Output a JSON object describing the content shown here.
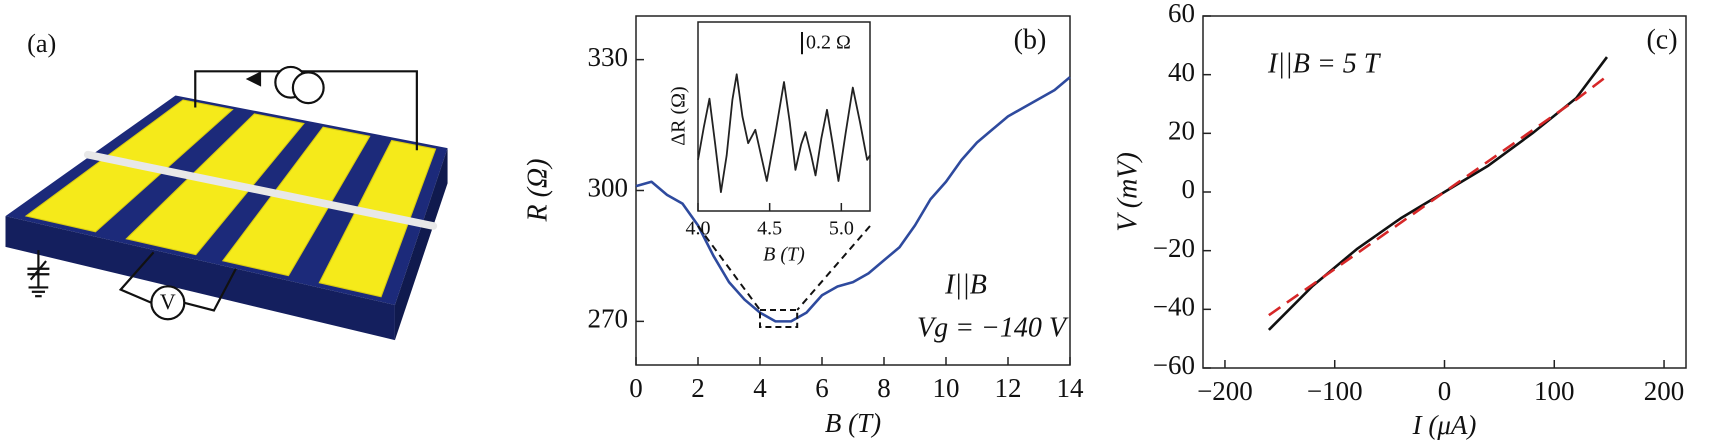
{
  "panel_a": {
    "label": "(a)",
    "voltmeter": "V"
  },
  "chart_data": [
    {
      "type": "line",
      "panel_label": "(b)",
      "xlabel": "B (T)",
      "ylabel": "R (Ω)",
      "annotations": [
        "I||B",
        "Vg = −140 V"
      ],
      "x": [
        0,
        0.5,
        1,
        1.5,
        2,
        2.5,
        3,
        3.5,
        4,
        4.5,
        5,
        5.5,
        6,
        6.5,
        7,
        7.5,
        8,
        8.5,
        9,
        9.5,
        10,
        10.5,
        11,
        11.5,
        12,
        12.5,
        13,
        13.5,
        14
      ],
      "series": [
        {
          "color": "#2e4a9e",
          "style": "solid",
          "values": [
            301,
            302,
            299,
            297,
            292,
            285,
            279,
            275,
            272,
            270,
            270,
            272,
            276,
            278,
            279,
            281,
            284,
            287,
            292,
            298,
            302,
            307,
            311,
            314,
            317,
            319,
            321,
            323,
            326
          ]
        }
      ],
      "xlim": [
        0,
        14
      ],
      "ylim": [
        260,
        340
      ],
      "xticks": [
        0,
        2,
        4,
        6,
        8,
        10,
        12,
        14
      ],
      "yticks": [
        270,
        300,
        330
      ],
      "inset": {
        "type": "line",
        "xlabel": "B (T)",
        "ylabel": "ΔR (Ω)",
        "x": [
          4.0,
          4.04,
          4.08,
          4.12,
          4.16,
          4.2,
          4.24,
          4.27,
          4.31,
          4.35,
          4.4,
          4.44,
          4.48,
          4.54,
          4.6,
          4.64,
          4.68,
          4.72,
          4.75,
          4.79,
          4.82,
          4.86,
          4.9,
          4.94,
          4.98,
          5.03,
          5.08,
          5.13,
          5.18,
          5.2
        ],
        "series": [
          {
            "color": "#222222",
            "style": "solid",
            "values": [
              -0.34,
              -0.05,
              0.21,
              -0.2,
              -0.63,
              -0.3,
              0.2,
              0.43,
              0.05,
              -0.19,
              -0.07,
              -0.3,
              -0.53,
              -0.1,
              0.36,
              0.0,
              -0.43,
              -0.2,
              -0.09,
              -0.3,
              -0.48,
              -0.15,
              0.11,
              -0.2,
              -0.53,
              -0.1,
              0.31,
              0.0,
              -0.34,
              -0.3
            ]
          }
        ],
        "xlim": [
          4.0,
          5.2
        ],
        "ylim": [
          -0.8,
          0.9
        ],
        "xticks": [
          {
            "value": 4,
            "label": "4.0"
          },
          4.5,
          {
            "value": 5,
            "label": "5.0"
          }
        ],
        "scale_bar": {
          "value": 0.2,
          "label": "0.2 Ω"
        }
      }
    },
    {
      "type": "line",
      "panel_label": "(c)",
      "xlabel": "I (μA)",
      "ylabel": "V (mV)",
      "annotations": [
        "I||B = 5 T"
      ],
      "x": [
        -160,
        -120,
        -80,
        -40,
        0,
        40,
        80,
        120,
        148
      ],
      "series": [
        {
          "color": "#111111",
          "style": "solid",
          "values": [
            -47,
            -32,
            -19.5,
            -9,
            0,
            9,
            20,
            32,
            46
          ]
        },
        {
          "color": "#d62728",
          "style": "dashed",
          "values": [
            -42,
            -31.5,
            -21,
            -10.5,
            0,
            10.5,
            21,
            31.5,
            39.5
          ]
        }
      ],
      "xlim": [
        -220,
        220
      ],
      "ylim": [
        -60,
        60
      ],
      "xticks": [
        {
          "value": -200,
          "label": "−200"
        },
        {
          "value": -100,
          "label": "−100"
        },
        0,
        100,
        200
      ],
      "yticks": [
        {
          "value": -60,
          "label": "−60"
        },
        {
          "value": -40,
          "label": "−40"
        },
        {
          "value": -20,
          "label": "−20"
        },
        0,
        20,
        40,
        60
      ]
    }
  ]
}
